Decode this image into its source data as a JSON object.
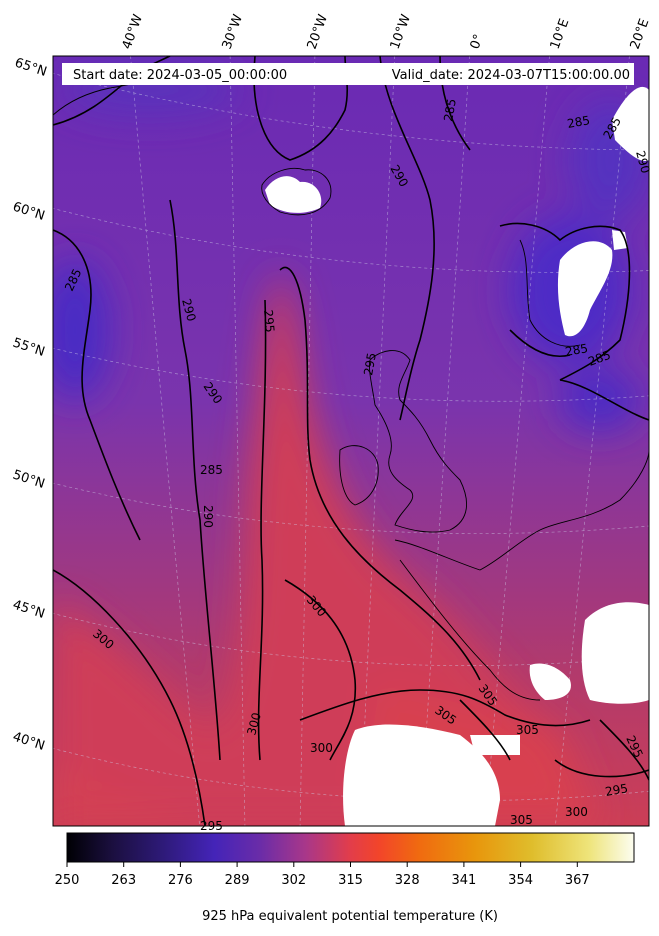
{
  "header": {
    "start_date": "Start date: 2024-03-05_00:00:00",
    "valid_date": "Valid_date: 2024-03-07T15:00:00.00"
  },
  "longitude_labels": [
    "40°W",
    "30°W",
    "20°W",
    "10°W",
    "0°",
    "10°E",
    "20°E"
  ],
  "latitude_labels": [
    "65°N",
    "60°N",
    "55°N",
    "50°N",
    "45°N",
    "40°N"
  ],
  "contour_labels": [
    "285",
    "285",
    "285",
    "285",
    "285",
    "285",
    "290",
    "290",
    "290",
    "290",
    "295",
    "295",
    "295",
    "295",
    "295",
    "300",
    "300",
    "300",
    "300",
    "300",
    "305",
    "305",
    "305",
    "305",
    "285",
    "290"
  ],
  "colorbar": {
    "ticks": [
      "250",
      "263",
      "276",
      "289",
      "302",
      "315",
      "328",
      "341",
      "354",
      "367"
    ],
    "label": "925 hPa equivalent potential temperature (K)",
    "colormap": [
      "#000004",
      "#231151",
      "#3a1d8c",
      "#4c2ab8",
      "#6a2ca8",
      "#a0358a",
      "#d23a52",
      "#f0402c",
      "#f06a10",
      "#e89a0a",
      "#e0c230",
      "#ece874",
      "#fcfdf0"
    ]
  },
  "colors": {
    "field_cold": "#4a2fc0",
    "field_mid": "#7a35b0",
    "field_warm": "#cc3e56",
    "land_mask": "#ffffff",
    "contour": "#000000"
  }
}
